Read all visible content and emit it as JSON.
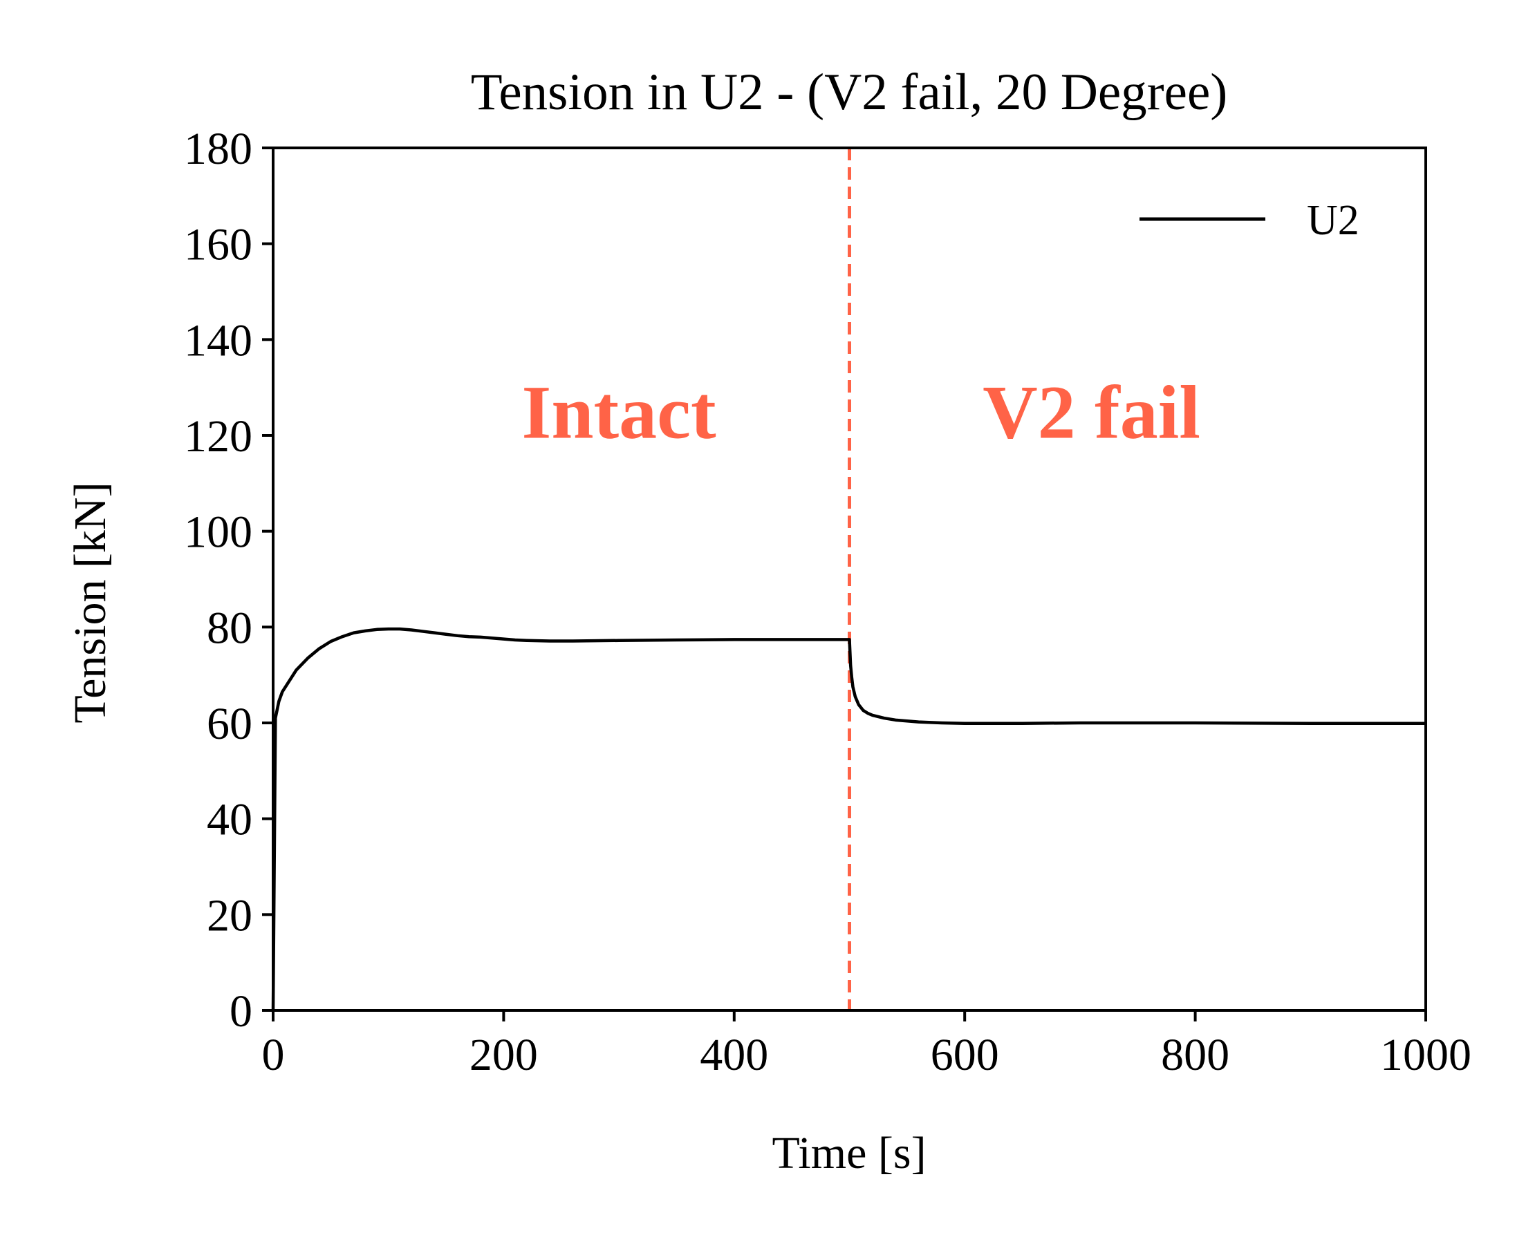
{
  "chart_data": {
    "type": "line",
    "title": "Tension in U2 - (V2 fail, 20 Degree)",
    "xlabel": "Time [s]",
    "ylabel": "Tension [kN]",
    "xlim": [
      0,
      1000
    ],
    "ylim": [
      0,
      180
    ],
    "xticks": [
      0,
      200,
      400,
      600,
      800,
      1000
    ],
    "yticks": [
      0,
      20,
      40,
      60,
      80,
      100,
      120,
      140,
      160,
      180
    ],
    "grid": false,
    "legend": {
      "placement": "top-right",
      "entries": [
        "U2"
      ]
    },
    "series": [
      {
        "name": "U2",
        "color": "#000000",
        "x": [
          0,
          2,
          5,
          8,
          12,
          20,
          30,
          40,
          50,
          60,
          70,
          80,
          90,
          100,
          110,
          120,
          130,
          140,
          150,
          160,
          170,
          180,
          190,
          200,
          210,
          220,
          240,
          260,
          300,
          350,
          400,
          450,
          499,
          500,
          501,
          502,
          503,
          505,
          508,
          512,
          516,
          520,
          530,
          540,
          560,
          580,
          600,
          650,
          700,
          800,
          900,
          1000
        ],
        "y": [
          0,
          61,
          64.5,
          66.5,
          68,
          71,
          73.5,
          75.5,
          77,
          78,
          78.8,
          79.2,
          79.5,
          79.6,
          79.6,
          79.4,
          79.1,
          78.8,
          78.5,
          78.2,
          78,
          77.9,
          77.7,
          77.5,
          77.3,
          77.2,
          77.1,
          77.1,
          77.2,
          77.3,
          77.4,
          77.4,
          77.4,
          77.4,
          72,
          69.5,
          67.5,
          65.5,
          63.8,
          62.6,
          62,
          61.6,
          61,
          60.6,
          60.2,
          60,
          59.9,
          59.9,
          60,
          60,
          59.9,
          59.9
        ]
      }
    ],
    "reference_lines": [
      {
        "orientation": "vertical",
        "x": 500,
        "style": "dashed",
        "color": "#ff6347"
      }
    ],
    "annotations": [
      {
        "text": "Intact",
        "x": 300,
        "y": 125,
        "color": "#ff6347"
      },
      {
        "text": "V2 fail",
        "x": 710,
        "y": 125,
        "color": "#ff6347"
      }
    ]
  }
}
